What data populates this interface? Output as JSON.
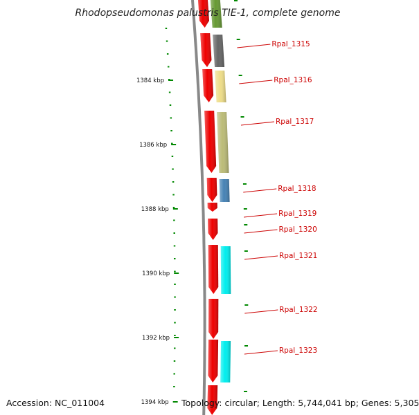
{
  "title": "Rhodopseudomonas palustris TIE-1, complete genome",
  "footer": {
    "accession": "Accession: NC_011004",
    "topology": "Topology: circular; Length: 5,744,041 bp; Genes: 5,305"
  },
  "scale": {
    "tick_labels": [
      "1384 kbp",
      "1386 kbp",
      "1388 kbp",
      "1390 kbp",
      "1392 kbp",
      "1394 kbp"
    ]
  },
  "colors": {
    "cds": "#ee0000",
    "backbone": "#888888",
    "tick": "#008800",
    "label_line": "#cc0000"
  },
  "genes": [
    {
      "label": "",
      "strand_color": "#669933"
    },
    {
      "label": "Rpal_1315",
      "strand_color": "#666666"
    },
    {
      "label": "Rpal_1316",
      "strand_color": "#eedd88"
    },
    {
      "label": "Rpal_1317",
      "strand_color": "#bbbb77"
    },
    {
      "label": "Rpal_1318",
      "strand_color": "#4682b4"
    },
    {
      "label": "Rpal_1319",
      "strand_color": ""
    },
    {
      "label": "Rpal_1320",
      "strand_color": ""
    },
    {
      "label": "Rpal_1321",
      "strand_color": "#00eeee"
    },
    {
      "label": "Rpal_1322",
      "strand_color": ""
    },
    {
      "label": "Rpal_1323",
      "strand_color": "#00eeee"
    },
    {
      "label": "",
      "strand_color": ""
    }
  ]
}
